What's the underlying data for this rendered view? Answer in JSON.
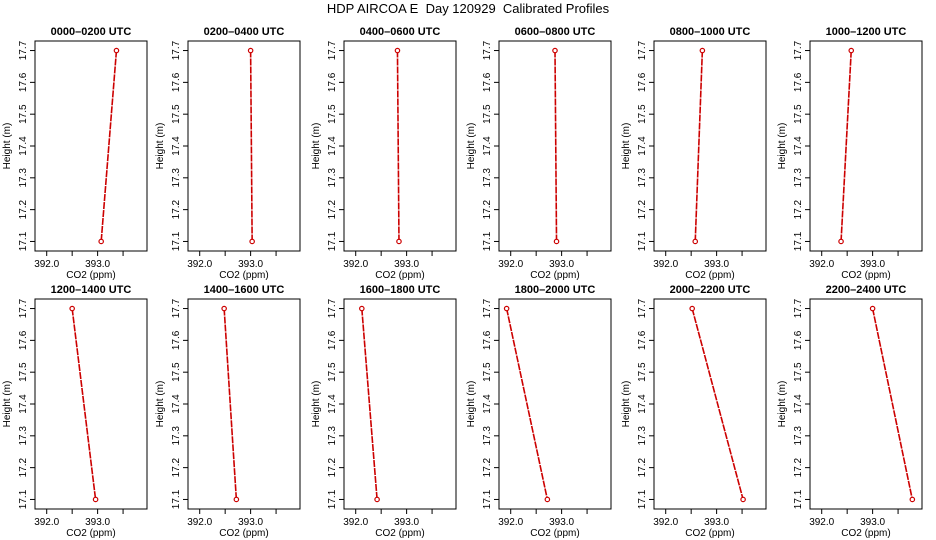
{
  "title": "HDP AIRCOA E  Day 120929  Calibrated Profiles",
  "xlabel": "CO2 (ppm)",
  "ylabel": "Height (m)",
  "x_tick_labels": [
    "392.0",
    "393.0"
  ],
  "y_tick_labels": [
    "17.1",
    "17.2",
    "17.3",
    "17.4",
    "17.5",
    "17.6",
    "17.7"
  ],
  "chart_data": [
    {
      "type": "line",
      "title": "0000–0200 UTC",
      "x": [
        393.37,
        393.07
      ],
      "y": [
        17.7,
        17.1
      ],
      "xlim": [
        391.77,
        393.97
      ],
      "ylim": [
        17.07,
        17.73
      ]
    },
    {
      "type": "line",
      "title": "0200–0400 UTC",
      "x": [
        393.03,
        393.0
      ],
      "y": [
        17.1,
        17.7
      ],
      "xlim": [
        391.77,
        393.97
      ],
      "ylim": [
        17.07,
        17.73
      ]
    },
    {
      "type": "line",
      "title": "0400–0600 UTC",
      "x": [
        392.85,
        392.82
      ],
      "y": [
        17.1,
        17.7
      ],
      "xlim": [
        391.77,
        393.97
      ],
      "ylim": [
        17.07,
        17.73
      ]
    },
    {
      "type": "line",
      "title": "0600–0800 UTC",
      "x": [
        392.9,
        392.87
      ],
      "y": [
        17.1,
        17.7
      ],
      "xlim": [
        391.77,
        393.97
      ],
      "ylim": [
        17.07,
        17.73
      ]
    },
    {
      "type": "line",
      "title": "0800–1000 UTC",
      "x": [
        392.58,
        392.72
      ],
      "y": [
        17.1,
        17.7
      ],
      "xlim": [
        391.77,
        393.97
      ],
      "ylim": [
        17.07,
        17.73
      ]
    },
    {
      "type": "line",
      "title": "1000–1200 UTC",
      "x": [
        392.38,
        392.58
      ],
      "y": [
        17.1,
        17.7
      ],
      "xlim": [
        391.77,
        393.97
      ],
      "ylim": [
        17.07,
        17.73
      ]
    },
    {
      "type": "line",
      "title": "1200–1400 UTC",
      "x": [
        392.5,
        392.96
      ],
      "y": [
        17.7,
        17.1
      ],
      "xlim": [
        391.77,
        393.97
      ],
      "ylim": [
        17.07,
        17.73
      ]
    },
    {
      "type": "line",
      "title": "1400–1600 UTC",
      "x": [
        392.48,
        392.72
      ],
      "y": [
        17.7,
        17.1
      ],
      "xlim": [
        391.77,
        393.97
      ],
      "ylim": [
        17.07,
        17.73
      ]
    },
    {
      "type": "line",
      "title": "1600–1800 UTC",
      "x": [
        392.12,
        392.42
      ],
      "y": [
        17.7,
        17.1
      ],
      "xlim": [
        391.77,
        393.97
      ],
      "ylim": [
        17.07,
        17.73
      ]
    },
    {
      "type": "line",
      "title": "1800–2000 UTC",
      "x": [
        391.92,
        392.72
      ],
      "y": [
        17.7,
        17.1
      ],
      "xlim": [
        391.77,
        393.97
      ],
      "ylim": [
        17.07,
        17.73
      ]
    },
    {
      "type": "line",
      "title": "2000–2200 UTC",
      "x": [
        392.52,
        393.52
      ],
      "y": [
        17.7,
        17.1
      ],
      "xlim": [
        391.77,
        393.97
      ],
      "ylim": [
        17.07,
        17.73
      ]
    },
    {
      "type": "line",
      "title": "2200–2400 UTC",
      "x": [
        393.0,
        393.78
      ],
      "y": [
        17.7,
        17.1
      ],
      "xlim": [
        391.77,
        393.97
      ],
      "ylim": [
        17.07,
        17.73
      ]
    }
  ],
  "colors": {
    "line": "#cc0000",
    "axis": "#000000"
  }
}
